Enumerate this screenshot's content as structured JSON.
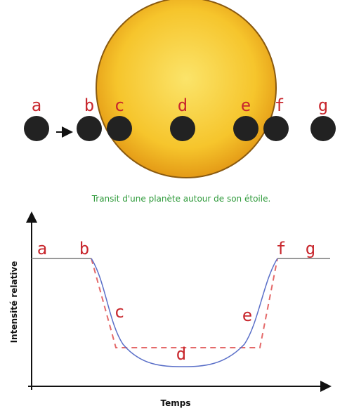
{
  "planets": {
    "labels": [
      "a",
      "b",
      "c",
      "d",
      "e",
      "f",
      "g"
    ]
  },
  "caption": "Transit d'une planète autour de son étoile.",
  "graph": {
    "point_labels": [
      "a",
      "b",
      "c",
      "d",
      "e",
      "f",
      "g"
    ],
    "y_axis_label": "Intensité relative",
    "x_axis_label": "Temps"
  }
}
